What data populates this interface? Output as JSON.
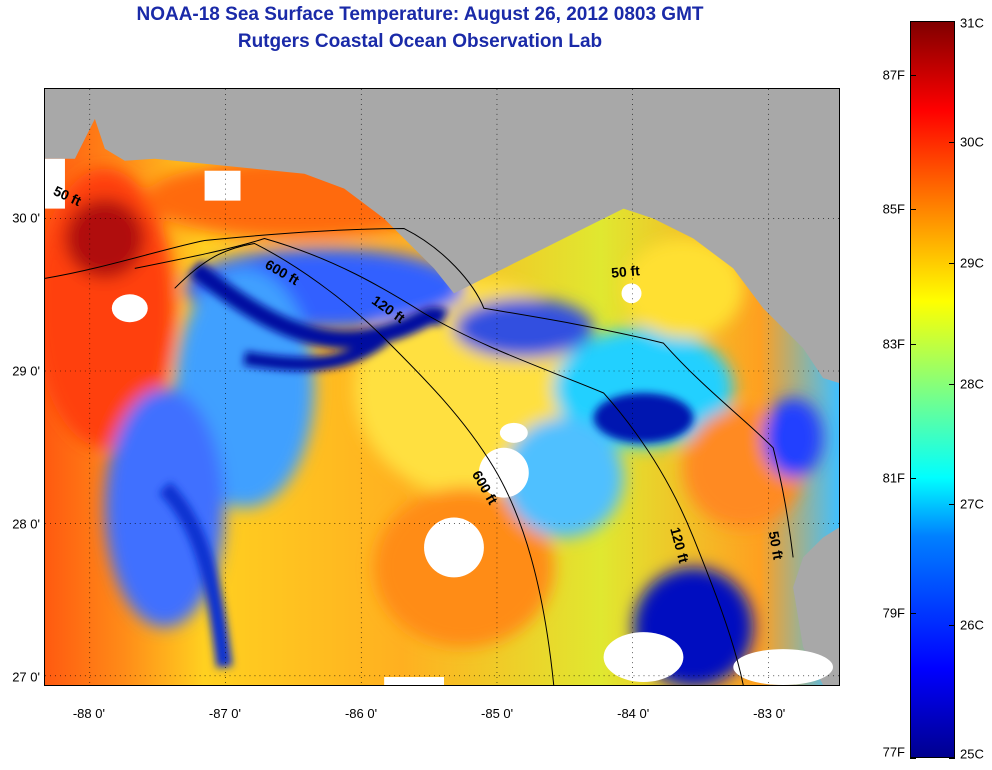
{
  "title": {
    "line1": "NOAA-18 Sea Surface Temperature:  August 26, 2012 0803 GMT",
    "line2": "Rutgers Coastal Ocean Observation Lab"
  },
  "map": {
    "x_ticks": [
      {
        "label": "-88 0'",
        "lon": -88
      },
      {
        "label": "-87 0'",
        "lon": -87
      },
      {
        "label": "-86 0'",
        "lon": -86
      },
      {
        "label": "-85 0'",
        "lon": -85
      },
      {
        "label": "-84 0'",
        "lon": -84
      },
      {
        "label": "-83 0'",
        "lon": -83
      }
    ],
    "y_ticks": [
      {
        "label": "30 0'",
        "lat": 30
      },
      {
        "label": "29 0'",
        "lat": 29
      },
      {
        "label": "28 0'",
        "lat": 28
      },
      {
        "label": "27 0'",
        "lat": 27
      }
    ],
    "lon_range": [
      -88.33,
      -82.48
    ],
    "lat_range": [
      26.94,
      30.85
    ],
    "contour_labels": [
      {
        "text": "50 ft",
        "lon": -88.18,
        "lat": 30.12,
        "rotate": 25
      },
      {
        "text": "600 ft",
        "lon": -86.6,
        "lat": 29.62,
        "rotate": 30
      },
      {
        "text": "120 ft",
        "lon": -85.82,
        "lat": 29.38,
        "rotate": 35
      },
      {
        "text": "50 ft",
        "lon": -84.05,
        "lat": 29.62,
        "rotate": -5
      },
      {
        "text": "600 ft",
        "lon": -85.12,
        "lat": 28.22,
        "rotate": 60
      },
      {
        "text": "120 ft",
        "lon": -83.69,
        "lat": 27.85,
        "rotate": 75
      },
      {
        "text": "50 ft",
        "lon": -82.98,
        "lat": 27.85,
        "rotate": 80
      }
    ],
    "colors": {
      "land": "#a8a8a8",
      "cloud": "#ffffff",
      "contour": "#000000",
      "grid": "#000000"
    }
  },
  "colorbar": {
    "fahrenheit": [
      {
        "label": "87F",
        "frac": 0.927
      },
      {
        "label": "85F",
        "frac": 0.745
      },
      {
        "label": "83F",
        "frac": 0.562
      },
      {
        "label": "81F",
        "frac": 0.38
      },
      {
        "label": "79F",
        "frac": 0.197
      },
      {
        "label": "77F",
        "frac": 0.0
      }
    ],
    "celsius": [
      {
        "label": "31C",
        "frac": 1.0
      },
      {
        "label": "30C",
        "frac": 0.836
      },
      {
        "label": "29C",
        "frac": 0.672
      },
      {
        "label": "28C",
        "frac": 0.508
      },
      {
        "label": "27C",
        "frac": 0.344
      },
      {
        "label": "26C",
        "frac": 0.18
      },
      {
        "label": "25C",
        "frac": 0.0
      }
    ]
  }
}
